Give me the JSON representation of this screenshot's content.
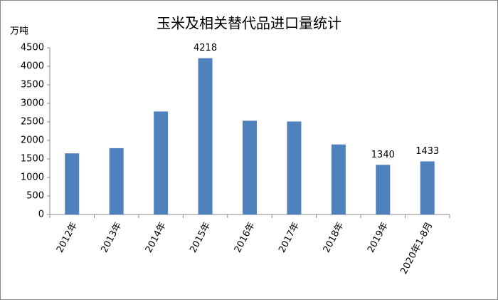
{
  "chart_data": {
    "type": "bar",
    "title": "玉米及相关替代品进口量统计",
    "y_label": "万吨",
    "categories": [
      "2012年",
      "2013年",
      "2014年",
      "2015年",
      "2016年",
      "2017年",
      "2018年",
      "2019年",
      "2020年1-8月"
    ],
    "values": [
      1650,
      1790,
      2780,
      4218,
      2530,
      2510,
      1890,
      1340,
      1433
    ],
    "value_labels": [
      null,
      null,
      null,
      "4218",
      null,
      null,
      null,
      "1340",
      "1433"
    ],
    "color": "#4f81bd",
    "ylim": [
      0,
      4500
    ],
    "yticks": [
      0,
      500,
      1000,
      1500,
      2000,
      2500,
      3000,
      3500,
      4000,
      4500
    ],
    "grid": false
  }
}
